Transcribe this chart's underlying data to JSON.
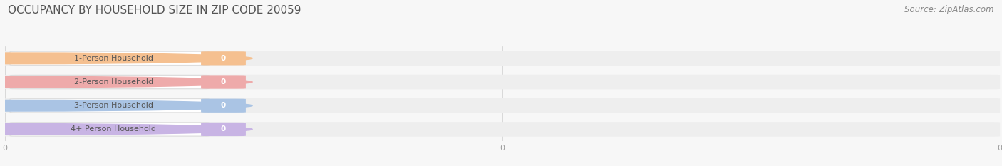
{
  "title": "OCCUPANCY BY HOUSEHOLD SIZE IN ZIP CODE 20059",
  "source_text": "Source: ZipAtlas.com",
  "categories": [
    "1-Person Household",
    "2-Person Household",
    "3-Person Household",
    "4+ Person Household"
  ],
  "values": [
    0,
    0,
    0,
    0
  ],
  "bar_colors": [
    "#f5c090",
    "#eeaaaa",
    "#aac4e4",
    "#c8b4e4"
  ],
  "label_bg_color": "#ffffff",
  "label_border_color": "#dddddd",
  "background_color": "#f7f7f7",
  "row_bg_color": "#eeeeee",
  "title_fontsize": 11,
  "title_color": "#555555",
  "source_fontsize": 8.5,
  "source_color": "#888888",
  "tick_fontsize": 8,
  "tick_color": "#999999",
  "bar_height": 0.62,
  "figsize": [
    14.06,
    2.33
  ],
  "dpi": 100
}
